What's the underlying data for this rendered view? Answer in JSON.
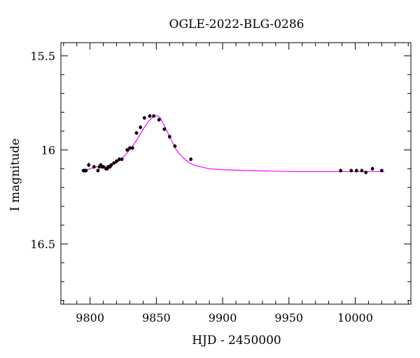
{
  "chart_data": {
    "type": "scatter",
    "title": "OGLE-2022-BLG-0286",
    "xlabel": "HJD - 2450000",
    "ylabel": "I magnitude",
    "xlim": [
      9778,
      10042
    ],
    "ylim": [
      16.82,
      15.43
    ],
    "y_inverted": true,
    "grid": false,
    "x_ticks": [
      {
        "value": 9800,
        "label": "9800"
      },
      {
        "value": 9850,
        "label": "9850"
      },
      {
        "value": 9900,
        "label": "9900"
      },
      {
        "value": 9950,
        "label": "9950"
      },
      {
        "value": 10000,
        "label": "10000"
      }
    ],
    "y_ticks": [
      {
        "value": 15.5,
        "label": "15.5"
      },
      {
        "value": 16.0,
        "label": "16"
      },
      {
        "value": 16.5,
        "label": "16.5"
      }
    ],
    "series": [
      {
        "kind": "points_with_errorbars",
        "color": "#000000",
        "x": [
          9795,
          9796,
          9797,
          9799,
          9803,
          9806,
          9807,
          9808,
          9809,
          9810,
          9812,
          9813,
          9814,
          9815,
          9816,
          9818,
          9820,
          9822,
          9824,
          9828,
          9830,
          9832,
          9835,
          9838,
          9841,
          9845,
          9848,
          9852,
          9856,
          9860,
          9864,
          9876,
          9989,
          9997,
          10001,
          10005,
          10008,
          10013,
          10020
        ],
        "y": [
          16.11,
          16.11,
          16.11,
          16.08,
          16.09,
          16.11,
          16.09,
          16.08,
          16.09,
          16.09,
          16.1,
          16.1,
          16.09,
          16.09,
          16.08,
          16.07,
          16.06,
          16.05,
          16.05,
          16.0,
          15.99,
          15.99,
          15.91,
          15.88,
          15.83,
          15.82,
          15.82,
          15.84,
          15.89,
          15.93,
          15.98,
          16.05,
          16.11,
          16.11,
          16.11,
          16.11,
          16.12,
          16.1,
          16.11
        ],
        "yerr": [
          0.01,
          0.01,
          0.01,
          0.012,
          0.01,
          0.01,
          0.01,
          0.01,
          0.01,
          0.01,
          0.01,
          0.01,
          0.01,
          0.01,
          0.01,
          0.01,
          0.01,
          0.01,
          0.01,
          0.01,
          0.01,
          0.01,
          0.01,
          0.01,
          0.01,
          0.01,
          0.01,
          0.01,
          0.01,
          0.01,
          0.01,
          0.01,
          0.01,
          0.01,
          0.01,
          0.01,
          0.01,
          0.01,
          0.01
        ]
      },
      {
        "kind": "model_curve",
        "color": "#ff00ff",
        "x": [
          9795,
          9800,
          9805,
          9810,
          9815,
          9820,
          9825,
          9830,
          9835,
          9840,
          9844,
          9848,
          9851,
          9853,
          9856,
          9860,
          9865,
          9870,
          9875,
          9880,
          9890,
          9900,
          9920,
          9950,
          9980,
          10000,
          10022
        ],
        "y": [
          16.11,
          16.1,
          16.09,
          16.09,
          16.08,
          16.07,
          16.04,
          16.0,
          15.95,
          15.89,
          15.85,
          15.82,
          15.82,
          15.83,
          15.87,
          15.93,
          16.0,
          16.04,
          16.07,
          16.085,
          16.1,
          16.105,
          16.11,
          16.115,
          16.115,
          16.115,
          16.115
        ]
      }
    ]
  }
}
